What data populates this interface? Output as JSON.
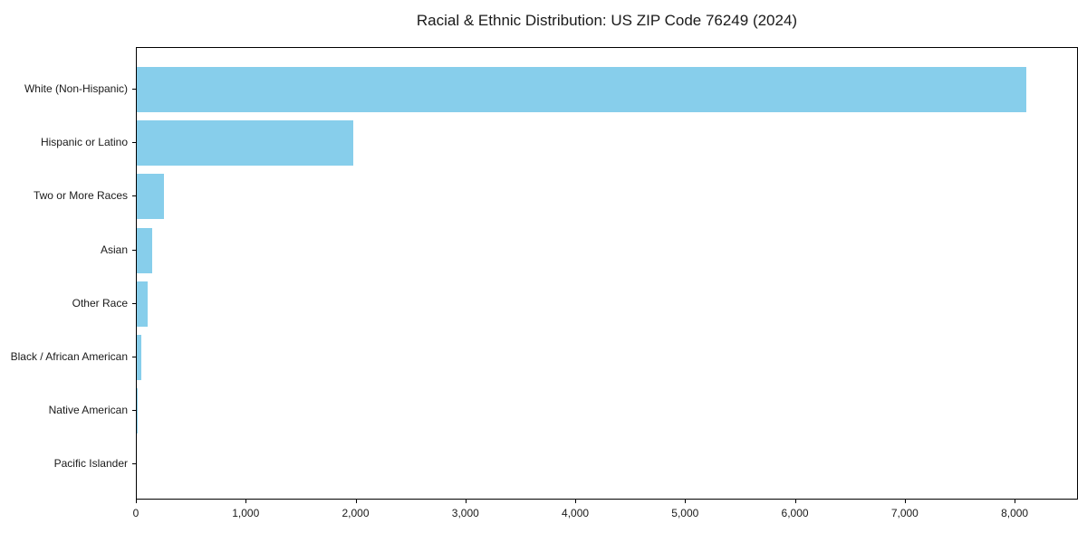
{
  "chart_data": {
    "type": "bar",
    "orientation": "horizontal",
    "title": "Racial & Ethnic Distribution: US ZIP Code 76249 (2024)",
    "categories": [
      "White (Non-Hispanic)",
      "Hispanic or Latino",
      "Two or More Races",
      "Asian",
      "Other Race",
      "Black / African American",
      "Native American",
      "Pacific Islander"
    ],
    "values": [
      8100,
      1975,
      250,
      140,
      95,
      40,
      5,
      0
    ],
    "bar_color": "#87CEEB",
    "background_color": "#ffffff",
    "spine_color": "#000000",
    "xlim": [
      0,
      8560
    ],
    "x_ticks": [
      0,
      1000,
      2000,
      3000,
      4000,
      5000,
      6000,
      7000,
      8000
    ],
    "x_tick_labels": [
      "0",
      "1,000",
      "2,000",
      "3,000",
      "4,000",
      "5,000",
      "6,000",
      "7,000",
      "8,000"
    ],
    "xlabel": "",
    "ylabel": "",
    "grid": false,
    "legend": "none"
  }
}
